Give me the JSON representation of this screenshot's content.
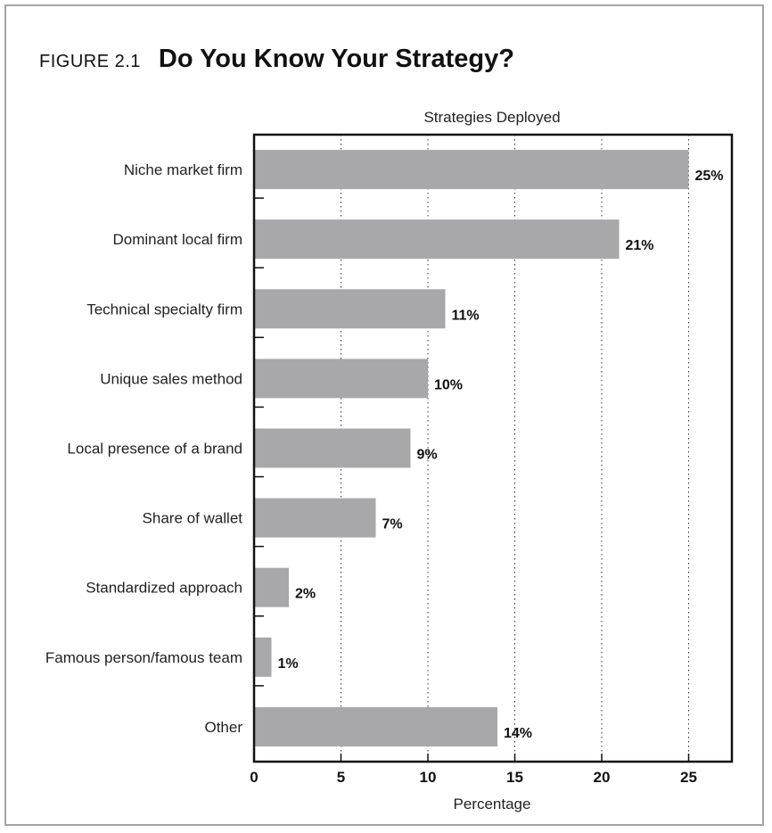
{
  "figure": {
    "label": "FIGURE 2.1",
    "title": "Do You Know Your Strategy?"
  },
  "chart_data": {
    "type": "bar",
    "orientation": "horizontal",
    "title": "Strategies Deployed",
    "xlabel": "Percentage",
    "ylabel": "",
    "xlim": [
      0,
      27.5
    ],
    "xticks": [
      0,
      5,
      10,
      15,
      20,
      25
    ],
    "grid": "vertical dotted",
    "categories": [
      "Niche market firm",
      "Dominant local firm",
      "Technical specialty firm",
      "Unique sales method",
      "Local presence of a brand",
      "Share of wallet",
      "Standardized approach",
      "Famous person/famous team",
      "Other"
    ],
    "values": [
      25,
      21,
      11,
      10,
      9,
      7,
      2,
      1,
      14
    ],
    "value_labels": [
      "25%",
      "21%",
      "11%",
      "10%",
      "9%",
      "7%",
      "2%",
      "1%",
      "14%"
    ],
    "bar_color": "#a8a8aa"
  }
}
